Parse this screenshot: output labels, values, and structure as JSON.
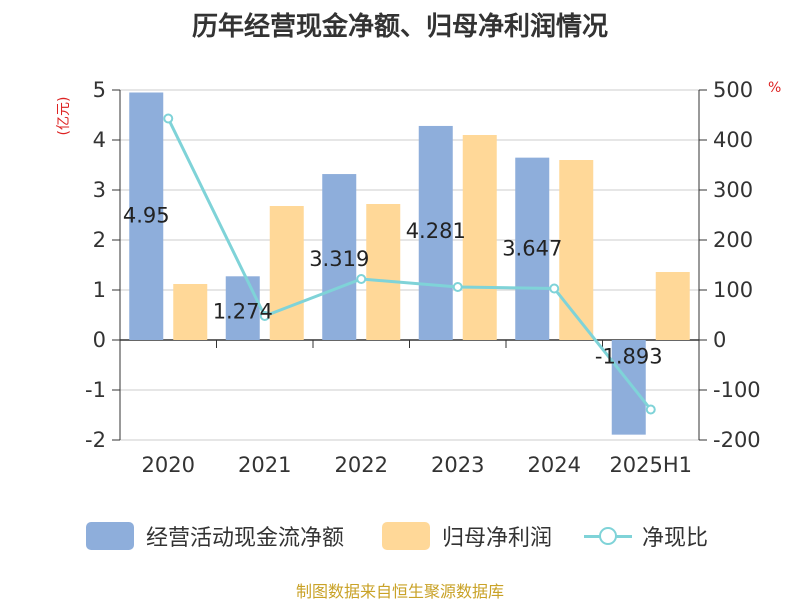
{
  "chart_data": {
    "type": "bar",
    "title": "历年经营现金净额、归母净利润情况",
    "ylabel_left": "(亿元)",
    "ylabel_right": "%",
    "categories": [
      "2020",
      "2021",
      "2022",
      "2023",
      "2024",
      "2025H1"
    ],
    "ylim_left": [
      -2,
      5
    ],
    "ylim_right": [
      -200,
      500
    ],
    "yticks_left": [
      "5",
      "4",
      "3",
      "2",
      "1",
      "0",
      "-1",
      "-2"
    ],
    "yticks_right": [
      "500",
      "400",
      "300",
      "200",
      "100",
      "0",
      "-100",
      "-200"
    ],
    "grid": true,
    "legend_position": "bottom",
    "series": [
      {
        "name": "经营活动现金流净额",
        "type": "bar",
        "axis": "left",
        "values": [
          4.95,
          1.274,
          3.319,
          4.281,
          3.647,
          -1.893
        ],
        "labels": [
          "4.95",
          "1.274",
          "3.319",
          "4.281",
          "3.647",
          "-1.893"
        ]
      },
      {
        "name": "归母净利润",
        "type": "bar",
        "axis": "left",
        "values": [
          1.12,
          2.68,
          2.72,
          4.1,
          3.6,
          1.36
        ]
      },
      {
        "name": "净现比",
        "type": "line",
        "axis": "right",
        "values": [
          443,
          48,
          122,
          106,
          103,
          -139
        ]
      }
    ],
    "colors": {
      "bar1": "#8eaedb",
      "bar2": "#ffd898",
      "line": "#7fd3d8",
      "unit": "#dd2222",
      "source": "#c9a227"
    }
  },
  "source_text": "制图数据来自恒生聚源数据库"
}
